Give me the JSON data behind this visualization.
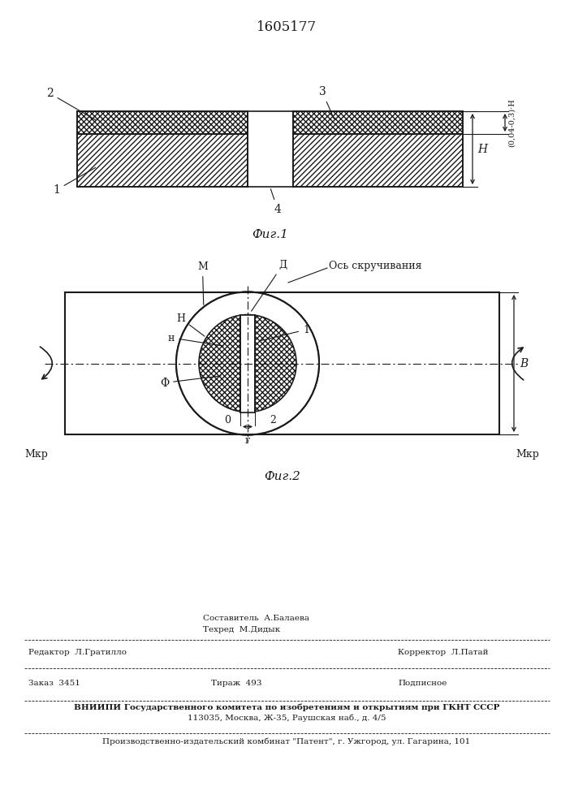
{
  "patent_number": "1605177",
  "fig1_label": "Фиг.1",
  "fig2_label": "Фиг.2",
  "line_color": "#1a1a1a",
  "label_M": "M",
  "label_D": "Д",
  "label_axis": "Ось скручивания",
  "label_H_inner": "H",
  "label_n": "н",
  "label_N": "N",
  "label_phi": "Φ",
  "label_B": "B",
  "label_Mkr": "Mкр",
  "label_0": "0",
  "label_r": "r",
  "label_2_fig2": "2",
  "label_1_fig2": "1",
  "dim_H": "H",
  "dim_h_small": "(0,04-0,3)·H",
  "footer_editor": "Редактор  Л.Гратилло",
  "footer_comp": "Составитель  А.Балаева",
  "footer_tech": "Техред  М.Дидык",
  "footer_corr": "Корректор  Л.Патай",
  "footer_order": "Заказ  3451",
  "footer_tirazh": "Тираж  493",
  "footer_podp": "Подписное",
  "footer_vniipи": "ВНИИПИ Государственного комитета по изобретениям и открытиям при ГКНТ СССР",
  "footer_addr": "113035, Москва, Ж-35, Раушская наб., д. 4/5",
  "footer_patent": "Производственно-издательский комбинат \"Патент\", г. Ужгород, ул. Гагарина, 101"
}
